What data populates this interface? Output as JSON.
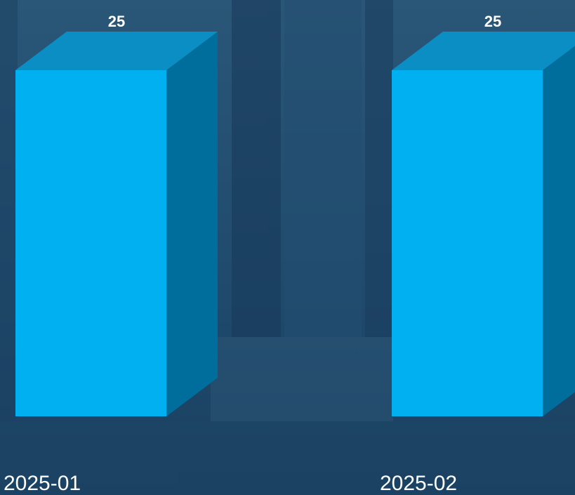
{
  "chart_data": {
    "type": "bar3d",
    "categories": [
      "2025-01",
      "2025-02"
    ],
    "values": [
      25,
      25
    ],
    "color": "#00b0f0",
    "side_color": "#006e9c",
    "top_color": "#0b8ec4"
  }
}
